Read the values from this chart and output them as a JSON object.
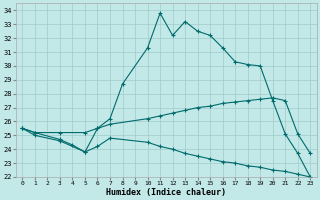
{
  "xlabel": "Humidex (Indice chaleur)",
  "bg_color": "#c2e8e8",
  "grid_color": "#a0cccc",
  "line_color": "#006b6b",
  "xlim": [
    -0.5,
    23.5
  ],
  "ylim": [
    22,
    34.5
  ],
  "yticks": [
    22,
    23,
    24,
    25,
    26,
    27,
    28,
    29,
    30,
    31,
    32,
    33,
    34
  ],
  "xticks": [
    0,
    1,
    2,
    3,
    4,
    5,
    6,
    7,
    8,
    9,
    10,
    11,
    12,
    13,
    14,
    15,
    16,
    17,
    18,
    19,
    20,
    21,
    22,
    23
  ],
  "curve1_x": [
    0,
    1,
    3,
    4,
    5,
    6,
    7,
    8,
    10,
    11,
    12,
    13,
    14,
    15,
    16,
    17,
    18,
    19,
    20,
    21,
    22,
    23
  ],
  "curve1_y": [
    25.5,
    25.2,
    24.7,
    24.3,
    23.8,
    25.5,
    26.2,
    28.7,
    31.3,
    33.8,
    32.2,
    33.2,
    32.5,
    32.2,
    31.3,
    30.3,
    30.1,
    30.0,
    27.5,
    25.1,
    23.7,
    22.0
  ],
  "curve2_x": [
    0,
    1,
    3,
    5,
    6,
    7,
    10,
    11,
    12,
    13,
    14,
    15,
    16,
    17,
    18,
    19,
    20,
    21,
    22,
    23
  ],
  "curve2_y": [
    25.5,
    25.2,
    25.2,
    25.2,
    25.5,
    25.8,
    26.2,
    26.4,
    26.6,
    26.8,
    27.0,
    27.1,
    27.3,
    27.4,
    27.5,
    27.6,
    27.7,
    27.5,
    25.1,
    23.7
  ],
  "curve3_x": [
    0,
    1,
    3,
    5,
    6,
    7,
    10,
    11,
    12,
    13,
    14,
    15,
    16,
    17,
    18,
    19,
    20,
    21,
    22,
    23
  ],
  "curve3_y": [
    25.5,
    25.0,
    24.6,
    23.8,
    24.2,
    24.8,
    24.5,
    24.2,
    24.0,
    23.7,
    23.5,
    23.3,
    23.1,
    23.0,
    22.8,
    22.7,
    22.5,
    22.4,
    22.2,
    22.0
  ]
}
